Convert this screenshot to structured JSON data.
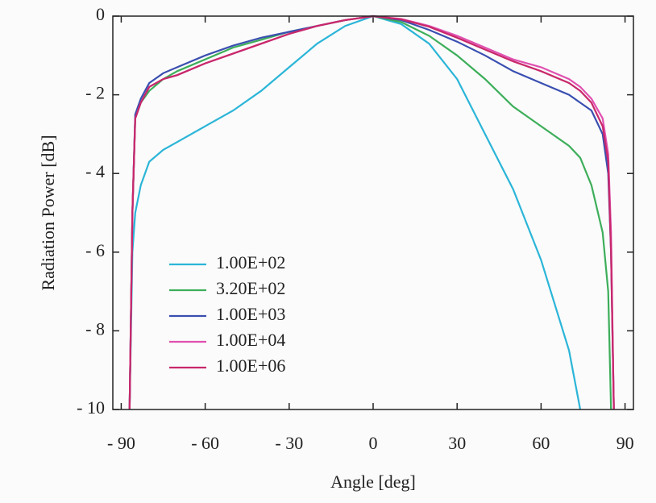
{
  "chart_data": {
    "type": "line",
    "xlabel": "Angle [deg]",
    "ylabel": "Radiation Power [dB]",
    "x": [
      -87,
      -86,
      -85,
      -83,
      -80,
      -75,
      -70,
      -60,
      -50,
      -40,
      -30,
      -20,
      -10,
      0,
      10,
      20,
      30,
      40,
      50,
      60,
      70,
      74,
      78,
      82,
      84,
      85,
      86
    ],
    "series": [
      {
        "name": "1.00E+02",
        "color": "#2bb5d8",
        "values": [
          -10,
          -6,
          -5,
          -4.3,
          -3.7,
          -3.4,
          -3.2,
          -2.8,
          -2.4,
          -1.9,
          -1.3,
          -0.7,
          -0.25,
          0,
          -0.2,
          -0.7,
          -1.6,
          -3.0,
          -4.4,
          -6.2,
          -8.5,
          -10,
          null,
          null,
          null,
          null,
          null
        ]
      },
      {
        "name": "3.20E+02",
        "color": "#3dae5a",
        "values": [
          -10,
          -5,
          -2.6,
          -2.2,
          -1.9,
          -1.6,
          -1.4,
          -1.1,
          -0.8,
          -0.6,
          -0.4,
          -0.25,
          -0.1,
          0,
          -0.15,
          -0.5,
          -1.0,
          -1.6,
          -2.3,
          -2.8,
          -3.3,
          -3.6,
          -4.3,
          -5.5,
          -7,
          -10,
          null
        ]
      },
      {
        "name": "1.00E+03",
        "color": "#3a4fb0",
        "values": [
          -10,
          -5,
          -2.5,
          -2.1,
          -1.7,
          -1.45,
          -1.3,
          -1.0,
          -0.75,
          -0.55,
          -0.4,
          -0.25,
          -0.1,
          0,
          -0.1,
          -0.35,
          -0.65,
          -1.0,
          -1.4,
          -1.7,
          -2.0,
          -2.2,
          -2.4,
          -3.0,
          -4,
          -6,
          -10
        ]
      },
      {
        "name": "1.00E+04",
        "color": "#e050b0",
        "values": [
          -10,
          -5,
          -2.6,
          -2.2,
          -1.8,
          -1.6,
          -1.5,
          -1.2,
          -0.95,
          -0.7,
          -0.45,
          -0.25,
          -0.1,
          0,
          -0.07,
          -0.25,
          -0.5,
          -0.8,
          -1.1,
          -1.3,
          -1.6,
          -1.8,
          -2.1,
          -2.6,
          -3.5,
          -5.5,
          -10
        ]
      },
      {
        "name": "1.00E+06",
        "color": "#c8286a",
        "values": [
          -10,
          -5,
          -2.6,
          -2.2,
          -1.8,
          -1.6,
          -1.5,
          -1.2,
          -0.95,
          -0.7,
          -0.45,
          -0.25,
          -0.1,
          0,
          -0.08,
          -0.27,
          -0.55,
          -0.85,
          -1.15,
          -1.4,
          -1.7,
          -1.9,
          -2.2,
          -2.8,
          -3.7,
          -6,
          -10
        ]
      }
    ],
    "xlim": [
      -93,
      93
    ],
    "xticks": [
      {
        "value": -90,
        "label": "- 90"
      },
      {
        "value": -60,
        "label": "- 60"
      },
      {
        "value": -30,
        "label": "- 30"
      },
      0,
      30,
      60,
      90
    ],
    "ylim": [
      -10,
      0
    ],
    "yticks": [
      {
        "value": -10,
        "label": "- 10"
      },
      {
        "value": -8,
        "label": "- 8"
      },
      {
        "value": -6,
        "label": "- 6"
      },
      {
        "value": -4,
        "label": "- 4"
      },
      {
        "value": -2,
        "label": "- 2"
      },
      0
    ],
    "legend": "lower left",
    "grid": false
  }
}
